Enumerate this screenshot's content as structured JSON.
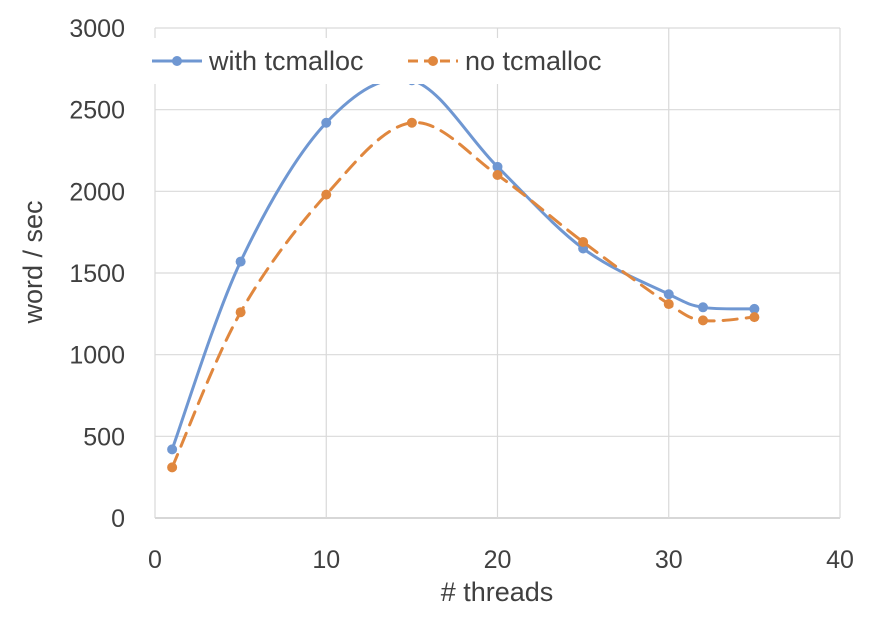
{
  "chart_data": {
    "type": "line",
    "title": "",
    "xlabel": "# threads",
    "ylabel": "word / sec",
    "xlim": [
      0,
      40
    ],
    "ylim": [
      0,
      3000
    ],
    "x_ticks": [
      0,
      10,
      20,
      30,
      40
    ],
    "y_ticks": [
      0,
      500,
      1000,
      1500,
      2000,
      2500,
      3000
    ],
    "grid": true,
    "smooth": true,
    "legend_position": "top",
    "series": [
      {
        "name": "with tcmalloc",
        "color": "#6f97d2",
        "style": "solid",
        "x": [
          1,
          5,
          10,
          15,
          20,
          25,
          30,
          32,
          35
        ],
        "y": [
          420,
          1570,
          2420,
          2680,
          2150,
          1650,
          1370,
          1290,
          1280
        ]
      },
      {
        "name": "no tcmalloc",
        "color": "#e0873e",
        "style": "dashed",
        "x": [
          1,
          5,
          10,
          15,
          20,
          25,
          30,
          32,
          35
        ],
        "y": [
          310,
          1260,
          1980,
          2420,
          2100,
          1690,
          1310,
          1210,
          1230
        ]
      }
    ]
  }
}
